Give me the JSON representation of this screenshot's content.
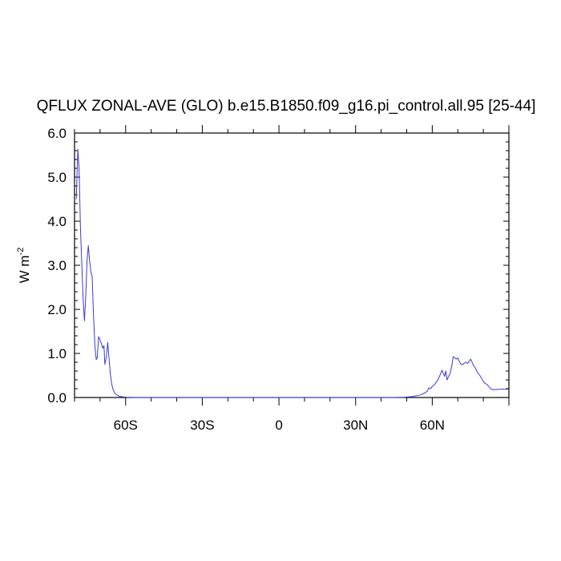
{
  "chart_data": {
    "type": "line",
    "title": "QFLUX ZONAL-AVE (GLO) b.e15.B1850.f09_g16.pi_control.all.95 [25-44]",
    "xlabel": "",
    "ylabel": "W m",
    "ylabel_superscript": "-2",
    "xlim": [
      -80,
      90
    ],
    "ylim": [
      0,
      6
    ],
    "x_ticks": [
      {
        "value": -60,
        "label": "60S"
      },
      {
        "value": -30,
        "label": "30S"
      },
      {
        "value": 0,
        "label": "0"
      },
      {
        "value": 30,
        "label": "30N"
      },
      {
        "value": 60,
        "label": "60N"
      }
    ],
    "y_ticks": [
      {
        "value": 0,
        "label": "0.0"
      },
      {
        "value": 1,
        "label": "1.0"
      },
      {
        "value": 2,
        "label": "2.0"
      },
      {
        "value": 3,
        "label": "3.0"
      },
      {
        "value": 4,
        "label": "4.0"
      },
      {
        "value": 5,
        "label": "5.0"
      },
      {
        "value": 6,
        "label": "6.0"
      }
    ],
    "series": [
      {
        "color": "#3b3bd6",
        "points": [
          [
            -79.3,
            4.5
          ],
          [
            -78.7,
            5.63
          ],
          [
            -78.2,
            5.2
          ],
          [
            -77.7,
            3.9
          ],
          [
            -77.2,
            3.1
          ],
          [
            -76.6,
            2.2
          ],
          [
            -76.1,
            1.74
          ],
          [
            -75.6,
            2.3
          ],
          [
            -75.1,
            3.1
          ],
          [
            -74.6,
            3.45
          ],
          [
            -74.1,
            3.1
          ],
          [
            -73.6,
            2.85
          ],
          [
            -73.1,
            2.75
          ],
          [
            -72.6,
            1.9
          ],
          [
            -72.0,
            1.15
          ],
          [
            -71.5,
            0.86
          ],
          [
            -71.1,
            0.9
          ],
          [
            -70.6,
            1.38
          ],
          [
            -70.0,
            1.3
          ],
          [
            -69.5,
            1.22
          ],
          [
            -69.0,
            1.12
          ],
          [
            -68.5,
            1.18
          ],
          [
            -68.1,
            0.75
          ],
          [
            -67.5,
            0.95
          ],
          [
            -67.0,
            1.25
          ],
          [
            -66.5,
            0.9
          ],
          [
            -66.0,
            0.55
          ],
          [
            -65.5,
            0.32
          ],
          [
            -64.9,
            0.18
          ],
          [
            -64.3,
            0.1
          ],
          [
            -63.5,
            0.06
          ],
          [
            -62.5,
            0.03
          ],
          [
            -61.0,
            0.015
          ],
          [
            -59.5,
            0.005
          ],
          [
            -57,
            0.0
          ],
          [
            -30,
            0.0
          ],
          [
            0,
            0.0
          ],
          [
            30,
            0.0
          ],
          [
            45,
            0.0
          ],
          [
            49,
            0.005
          ],
          [
            52,
            0.02
          ],
          [
            54,
            0.04
          ],
          [
            55.5,
            0.06
          ],
          [
            57,
            0.1
          ],
          [
            58,
            0.14
          ],
          [
            58.7,
            0.22
          ],
          [
            59.3,
            0.2
          ],
          [
            60,
            0.25
          ],
          [
            61,
            0.3
          ],
          [
            62,
            0.38
          ],
          [
            63,
            0.5
          ],
          [
            63.8,
            0.62
          ],
          [
            64.3,
            0.55
          ],
          [
            64.8,
            0.48
          ],
          [
            65.3,
            0.6
          ],
          [
            65.8,
            0.4
          ],
          [
            66.4,
            0.48
          ],
          [
            67,
            0.55
          ],
          [
            67.6,
            0.7
          ],
          [
            68.2,
            0.93
          ],
          [
            68.8,
            0.9
          ],
          [
            69.4,
            0.87
          ],
          [
            70,
            0.9
          ],
          [
            70.6,
            0.82
          ],
          [
            71.2,
            0.76
          ],
          [
            71.8,
            0.74
          ],
          [
            72.5,
            0.78
          ],
          [
            73.2,
            0.8
          ],
          [
            73.8,
            0.77
          ],
          [
            74.4,
            0.82
          ],
          [
            75,
            0.87
          ],
          [
            75.6,
            0.8
          ],
          [
            76.2,
            0.72
          ],
          [
            76.8,
            0.68
          ],
          [
            77.4,
            0.6
          ],
          [
            78,
            0.55
          ],
          [
            78.6,
            0.5
          ],
          [
            79.2,
            0.45
          ],
          [
            79.8,
            0.38
          ],
          [
            80.5,
            0.33
          ],
          [
            81.3,
            0.3
          ],
          [
            82,
            0.26
          ],
          [
            82.8,
            0.2
          ],
          [
            83.7,
            0.18
          ],
          [
            85,
            0.18
          ],
          [
            86.5,
            0.19
          ],
          [
            88,
            0.19
          ],
          [
            90,
            0.19
          ]
        ]
      }
    ]
  }
}
